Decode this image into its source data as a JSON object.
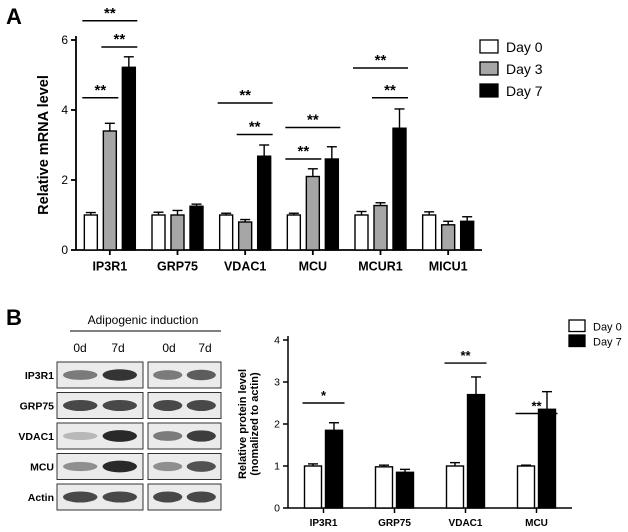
{
  "panel_a": {
    "label": "A",
    "chart_data": {
      "type": "bar",
      "ylabel": "Relative mRNA level",
      "ylim": [
        0,
        6
      ],
      "yticks": [
        0,
        2,
        4,
        6
      ],
      "categories": [
        "IP3R1",
        "GRP75",
        "VDAC1",
        "MCU",
        "MCUR1",
        "MICU1"
      ],
      "series": [
        {
          "name": "Day 0",
          "values": [
            1.0,
            1.0,
            1.0,
            1.0,
            1.0,
            1.0
          ],
          "errors": [
            0.07,
            0.08,
            0.05,
            0.05,
            0.1,
            0.09
          ],
          "color": "#ffffff"
        },
        {
          "name": "Day 3",
          "values": [
            3.4,
            1.0,
            0.8,
            2.1,
            1.27,
            0.72
          ],
          "errors": [
            0.22,
            0.13,
            0.07,
            0.22,
            0.08,
            0.1
          ],
          "color": "#a6a6a6"
        },
        {
          "name": "Day 7",
          "values": [
            5.22,
            1.25,
            2.68,
            2.6,
            3.48,
            0.82
          ],
          "errors": [
            0.3,
            0.06,
            0.32,
            0.35,
            0.55,
            0.13
          ],
          "color": "#000000"
        }
      ],
      "significance": [
        {
          "category": 0,
          "from": 0,
          "to": 1,
          "label": "**",
          "y": 4.35
        },
        {
          "category": 0,
          "from": 1,
          "to": 2,
          "label": "**",
          "y": 5.8
        },
        {
          "category": 0,
          "from": 0,
          "to": 2,
          "label": "**",
          "y": 6.55
        },
        {
          "category": 2,
          "from": 1,
          "to": 2,
          "label": "**",
          "y": 3.3
        },
        {
          "category": 2,
          "from": 0,
          "to": 2,
          "label": "**",
          "y": 4.2
        },
        {
          "category": 3,
          "from": 0,
          "to": 1,
          "label": "**",
          "y": 2.6
        },
        {
          "category": 3,
          "from": 0,
          "to": 2,
          "label": "**",
          "y": 3.5
        },
        {
          "category": 4,
          "from": 1,
          "to": 2,
          "label": "**",
          "y": 4.35
        },
        {
          "category": 4,
          "from": 0,
          "to": 2,
          "label": "**",
          "y": 5.2
        }
      ],
      "legend_position": "top-right",
      "grid": false
    }
  },
  "panel_b": {
    "label": "B",
    "blot": {
      "header": "Adipogenic induction",
      "lanes": [
        "0d",
        "7d",
        "0d",
        "7d"
      ],
      "proteins": [
        "IP3R1",
        "GRP75",
        "VDAC1",
        "MCU",
        "Actin"
      ]
    },
    "chart_data": {
      "type": "bar",
      "ylabel": "Relative protein level\n(nomalized to actin)",
      "ylim": [
        0,
        4
      ],
      "yticks": [
        0,
        1,
        2,
        3,
        4
      ],
      "categories": [
        "IP3R1",
        "GRP75",
        "VDAC1",
        "MCU"
      ],
      "series": [
        {
          "name": "Day 0",
          "values": [
            1.0,
            0.98,
            1.0,
            1.0
          ],
          "errors": [
            0.05,
            0.04,
            0.08,
            0.02
          ],
          "color": "#ffffff"
        },
        {
          "name": "Day 7",
          "values": [
            1.85,
            0.85,
            2.7,
            2.35
          ],
          "errors": [
            0.18,
            0.07,
            0.42,
            0.42
          ],
          "color": "#000000"
        }
      ],
      "significance": [
        {
          "category": 0,
          "from": 0,
          "to": 1,
          "label": "*",
          "y": 2.5
        },
        {
          "category": 2,
          "from": 0,
          "to": 1,
          "label": "**",
          "y": 3.45
        },
        {
          "category": 3,
          "from": 0,
          "to": 1,
          "label": "**",
          "y": 2.25
        }
      ],
      "legend_position": "top-right",
      "grid": false
    }
  }
}
